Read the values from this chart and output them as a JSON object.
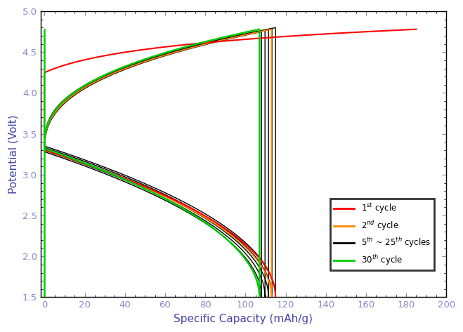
{
  "xlabel": "Specific Capacity (mAh/g)",
  "ylabel": "Potential (Volt)",
  "xlim": [
    -2,
    200
  ],
  "ylim": [
    1.5,
    5.0
  ],
  "xticks": [
    0,
    20,
    40,
    60,
    80,
    100,
    120,
    140,
    160,
    180,
    200
  ],
  "yticks": [
    1.5,
    2.0,
    2.5,
    3.0,
    3.5,
    4.0,
    4.5,
    5.0
  ],
  "colors": {
    "cycle1": "#ff0000",
    "cycle2": "#ff8800",
    "cycle5_25": "#000000",
    "cycle30": "#00cc00"
  },
  "legend_labels": [
    "1$^{st}$ cycle",
    "2$^{nd}$ cycle",
    "5$^{th}$ ~ 25$^{th}$ cycles",
    "30$^{th}$ cycle"
  ],
  "background": "#ffffff",
  "tick_color": "#8888cc",
  "label_color": "#4444aa"
}
